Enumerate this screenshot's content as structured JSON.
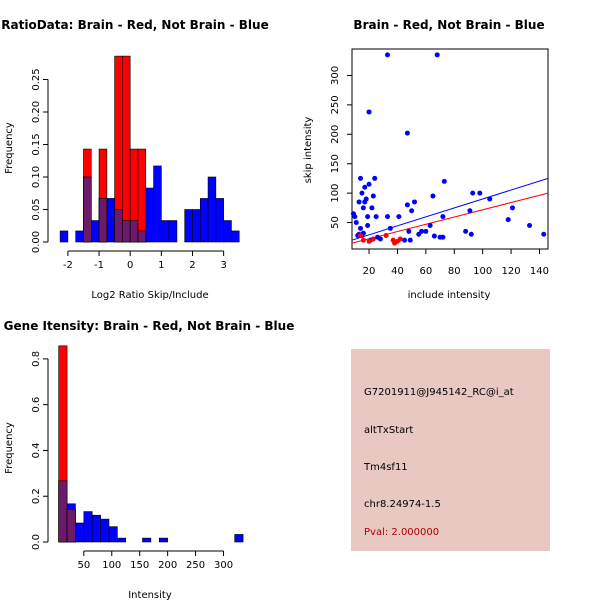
{
  "colors": {
    "red": "#ff0000",
    "blue": "#0000ff",
    "overlap": "#6d1a6d",
    "panel_bg": "#e8c8c0",
    "pval": "#b00000"
  },
  "chart_data": [
    {
      "id": "ratio-hist",
      "type": "bar",
      "title": "RatioData: Brain - Red, Not Brain - Blue",
      "xlabel": "Log2 Ratio Skip/Include",
      "ylabel": "Frequency",
      "xlim": [
        -2.35,
        3.75
      ],
      "ylim": [
        0,
        0.3
      ],
      "xticks": [
        -2,
        -1,
        0,
        1,
        2,
        3
      ],
      "yticks": [
        0.0,
        0.05,
        0.1,
        0.15,
        0.2,
        0.25
      ],
      "ytick_labels": [
        "0.00",
        "0.05",
        "0.10",
        "0.15",
        "0.20",
        "0.25"
      ],
      "bin_width": 0.25,
      "series": [
        {
          "name": "Not Brain",
          "color": "blue",
          "bins": [
            [
              -2.25,
              0.017
            ],
            [
              -1.75,
              0.017
            ],
            [
              -1.5,
              0.1
            ],
            [
              -1.25,
              0.033
            ],
            [
              -1.0,
              0.067
            ],
            [
              -0.75,
              0.067
            ],
            [
              -0.5,
              0.05
            ],
            [
              -0.25,
              0.033
            ],
            [
              0.0,
              0.033
            ],
            [
              0.25,
              0.017
            ],
            [
              0.5,
              0.083
            ],
            [
              0.75,
              0.117
            ],
            [
              1.0,
              0.033
            ],
            [
              1.25,
              0.033
            ],
            [
              1.75,
              0.05
            ],
            [
              2.0,
              0.05
            ],
            [
              2.25,
              0.067
            ],
            [
              2.5,
              0.1
            ],
            [
              2.75,
              0.067
            ],
            [
              3.0,
              0.033
            ],
            [
              3.25,
              0.017
            ]
          ]
        },
        {
          "name": "Brain",
          "color": "red",
          "bins": [
            [
              -1.5,
              0.143
            ],
            [
              -1.0,
              0.143
            ],
            [
              -0.5,
              0.286
            ],
            [
              -0.25,
              0.286
            ],
            [
              0.0,
              0.143
            ],
            [
              0.25,
              0.143
            ]
          ]
        }
      ]
    },
    {
      "id": "scatter",
      "type": "scatter",
      "title": "Brain - Red, Not Brain - Blue",
      "xlabel": "include intensity",
      "ylabel": "skip intensity",
      "xlim": [
        8,
        146
      ],
      "ylim": [
        5,
        345
      ],
      "xticks": [
        20,
        40,
        60,
        80,
        100,
        120,
        140
      ],
      "yticks": [
        50,
        100,
        150,
        200,
        250,
        300
      ],
      "series": [
        {
          "name": "Not Brain",
          "color": "blue",
          "points": [
            [
              9,
              65
            ],
            [
              10,
              60
            ],
            [
              11,
              50
            ],
            [
              12,
              28
            ],
            [
              13,
              85
            ],
            [
              13,
              30
            ],
            [
              14,
              125
            ],
            [
              14,
              40
            ],
            [
              15,
              100
            ],
            [
              15,
              28
            ],
            [
              16,
              75
            ],
            [
              16,
              32
            ],
            [
              17,
              110
            ],
            [
              17,
              85
            ],
            [
              18,
              90
            ],
            [
              19,
              60
            ],
            [
              19,
              45
            ],
            [
              20,
              115
            ],
            [
              20,
              238
            ],
            [
              21,
              20
            ],
            [
              22,
              75
            ],
            [
              23,
              95
            ],
            [
              24,
              125
            ],
            [
              25,
              60
            ],
            [
              26,
              25
            ],
            [
              28,
              22
            ],
            [
              33,
              335
            ],
            [
              33,
              60
            ],
            [
              35,
              40
            ],
            [
              41,
              60
            ],
            [
              45,
              20
            ],
            [
              47,
              202
            ],
            [
              47,
              80
            ],
            [
              48,
              35
            ],
            [
              49,
              20
            ],
            [
              50,
              70
            ],
            [
              52,
              85
            ],
            [
              55,
              30
            ],
            [
              57,
              35
            ],
            [
              60,
              35
            ],
            [
              63,
              45
            ],
            [
              65,
              95
            ],
            [
              66,
              27
            ],
            [
              68,
              335
            ],
            [
              70,
              25
            ],
            [
              72,
              60
            ],
            [
              72,
              25
            ],
            [
              73,
              120
            ],
            [
              88,
              35
            ],
            [
              91,
              70
            ],
            [
              92,
              30
            ],
            [
              93,
              100
            ],
            [
              98,
              100
            ],
            [
              105,
              90
            ],
            [
              118,
              55
            ],
            [
              121,
              75
            ],
            [
              133,
              45
            ],
            [
              143,
              30
            ]
          ]
        },
        {
          "name": "Brain",
          "color": "red",
          "points": [
            [
              14,
              28
            ],
            [
              16,
              20
            ],
            [
              20,
              18
            ],
            [
              23,
              22
            ],
            [
              32,
              28
            ],
            [
              37,
              20
            ],
            [
              38,
              15
            ],
            [
              40,
              18
            ],
            [
              42,
              22
            ]
          ]
        }
      ],
      "fit_lines": [
        {
          "color": "blue",
          "from": [
            8,
            20
          ],
          "to": [
            146,
            125
          ]
        },
        {
          "color": "red",
          "from": [
            8,
            15
          ],
          "to": [
            146,
            100
          ]
        }
      ]
    },
    {
      "id": "gene-hist",
      "type": "bar",
      "title": "Gene Itensity: Brain - Red, Not Brain - Blue",
      "xlabel": "Intensity",
      "ylabel": "Frequency",
      "xlim": [
        2,
        342
      ],
      "ylim": [
        0,
        0.9
      ],
      "xticks": [
        50,
        100,
        150,
        200,
        250,
        300
      ],
      "yticks": [
        0.0,
        0.2,
        0.4,
        0.6,
        0.8
      ],
      "ytick_labels": [
        "0.0",
        "0.2",
        "0.4",
        "0.6",
        "0.8"
      ],
      "bin_width": 15,
      "series": [
        {
          "name": "Not Brain",
          "color": "blue",
          "bins": [
            [
              5,
              0.267
            ],
            [
              20,
              0.167
            ],
            [
              35,
              0.083
            ],
            [
              50,
              0.133
            ],
            [
              65,
              0.117
            ],
            [
              80,
              0.1
            ],
            [
              95,
              0.067
            ],
            [
              110,
              0.017
            ],
            [
              155,
              0.017
            ],
            [
              185,
              0.017
            ],
            [
              320,
              0.033
            ]
          ]
        },
        {
          "name": "Brain",
          "color": "red",
          "bins": [
            [
              5,
              0.857
            ],
            [
              20,
              0.143
            ]
          ]
        }
      ]
    }
  ],
  "info_panel": {
    "probe": "G7201911@J945142_RC@i_at",
    "event": "altTxStart",
    "gene": "Tm4sf11",
    "location": "chr8.24974-1.5",
    "pval": "Pval: 2.000000"
  }
}
